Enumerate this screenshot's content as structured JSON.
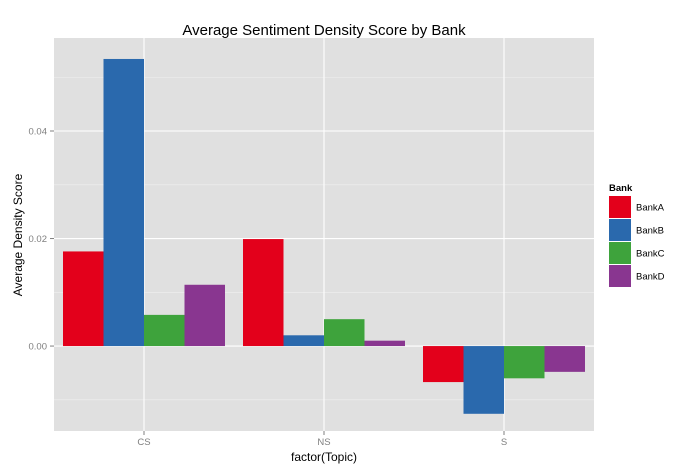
{
  "chart_data": {
    "type": "bar",
    "title": "Average Sentiment Density Score by Bank",
    "xlabel": "factor(Topic)",
    "ylabel": "Average Density Score",
    "categories": [
      "CS",
      "NS",
      "S"
    ],
    "series": [
      {
        "name": "BankA",
        "color": "#e3001b",
        "values": [
          0.0176,
          0.0199,
          -0.0067
        ]
      },
      {
        "name": "BankB",
        "color": "#2a69ad",
        "values": [
          0.0534,
          0.002,
          -0.0126
        ]
      },
      {
        "name": "BankC",
        "color": "#3ea33c",
        "values": [
          0.0058,
          0.005,
          -0.006
        ]
      },
      {
        "name": "BankD",
        "color": "#893690",
        "values": [
          0.0114,
          0.001,
          -0.0048
        ]
      }
    ],
    "ylim": [
      -0.0158,
      0.0573
    ],
    "yticks": [
      0.0,
      0.02,
      0.04
    ],
    "ytick_labels": [
      "0.00",
      "0.02",
      "0.04"
    ],
    "grid": true,
    "legend": {
      "title": "Bank",
      "position": "right"
    },
    "panel_background": "#e0e0e0",
    "grid_color": "#ffffff"
  }
}
